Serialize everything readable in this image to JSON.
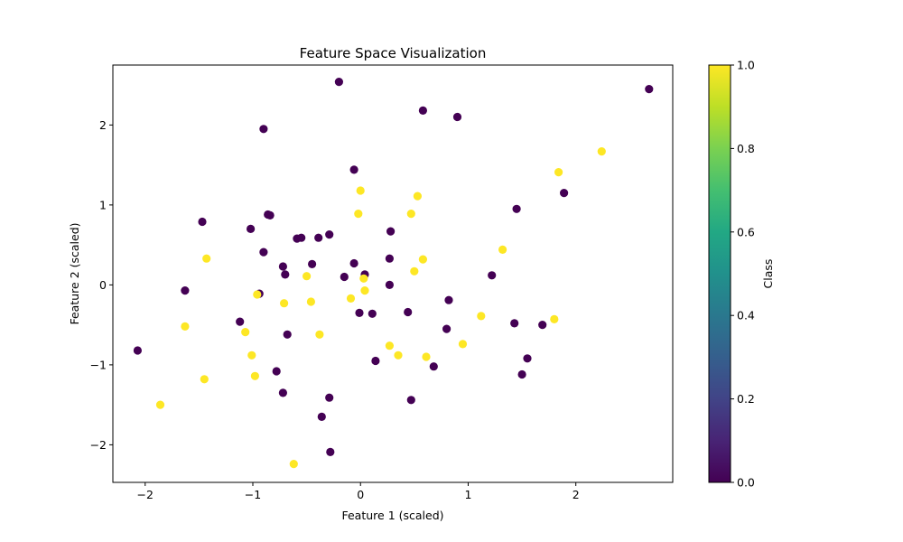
{
  "chart_data": {
    "type": "scatter",
    "title": "Feature Space Visualization",
    "xlabel": "Feature 1 (scaled)",
    "ylabel": "Feature 2 (scaled)",
    "xlim": [
      -2.3,
      2.9
    ],
    "ylim": [
      -2.47,
      2.75
    ],
    "x_ticks": [
      -2,
      -1,
      0,
      1,
      2
    ],
    "y_ticks": [
      -2,
      -1,
      0,
      1,
      2
    ],
    "grid": false,
    "colormap": "viridis",
    "colorbar": {
      "label": "Class",
      "range": [
        0.0,
        1.0
      ],
      "ticks": [
        "0.0",
        "0.2",
        "0.4",
        "0.6",
        "0.8",
        "1.0"
      ]
    },
    "colors": {
      "class_0": "#440154",
      "class_1": "#fde725"
    },
    "series": [
      {
        "class": 0,
        "points": [
          [
            -2.07,
            -0.82
          ],
          [
            -1.63,
            -0.07
          ],
          [
            -1.47,
            0.79
          ],
          [
            -1.12,
            -0.46
          ],
          [
            -1.02,
            0.7
          ],
          [
            -0.9,
            1.95
          ],
          [
            -0.9,
            0.41
          ],
          [
            -0.86,
            0.88
          ],
          [
            -0.84,
            0.87
          ],
          [
            -0.78,
            -1.08
          ],
          [
            -0.72,
            0.23
          ],
          [
            -0.7,
            0.13
          ],
          [
            -0.68,
            -0.62
          ],
          [
            -0.72,
            -1.35
          ],
          [
            -0.59,
            0.58
          ],
          [
            -0.55,
            0.59
          ],
          [
            -0.45,
            0.26
          ],
          [
            -0.39,
            0.59
          ],
          [
            -0.36,
            -1.65
          ],
          [
            -0.29,
            0.63
          ],
          [
            -0.29,
            -1.41
          ],
          [
            -0.28,
            -2.09
          ],
          [
            -0.2,
            2.54
          ],
          [
            -0.15,
            0.1
          ],
          [
            -0.06,
            1.44
          ],
          [
            -0.06,
            0.27
          ],
          [
            -0.01,
            -0.35
          ],
          [
            0.04,
            0.13
          ],
          [
            0.11,
            -0.36
          ],
          [
            0.14,
            -0.95
          ],
          [
            0.27,
            0.33
          ],
          [
            0.27,
            0.0
          ],
          [
            0.28,
            0.67
          ],
          [
            0.44,
            -0.34
          ],
          [
            0.47,
            -1.44
          ],
          [
            0.58,
            2.18
          ],
          [
            0.68,
            -1.02
          ],
          [
            0.8,
            -0.55
          ],
          [
            0.82,
            -0.19
          ],
          [
            0.9,
            2.1
          ],
          [
            1.22,
            0.12
          ],
          [
            1.43,
            -0.48
          ],
          [
            1.45,
            0.95
          ],
          [
            1.5,
            -1.12
          ],
          [
            1.55,
            -0.92
          ],
          [
            1.69,
            -0.5
          ],
          [
            1.89,
            1.15
          ],
          [
            2.68,
            2.45
          ],
          [
            -0.94,
            -0.11
          ]
        ]
      },
      {
        "class": 1,
        "points": [
          [
            -1.86,
            -1.5
          ],
          [
            -1.63,
            -0.52
          ],
          [
            -1.45,
            -1.18
          ],
          [
            -1.43,
            0.33
          ],
          [
            -1.07,
            -0.59
          ],
          [
            -1.01,
            -0.88
          ],
          [
            -0.98,
            -1.14
          ],
          [
            -0.96,
            -0.12
          ],
          [
            -0.71,
            -0.23
          ],
          [
            -0.62,
            -2.24
          ],
          [
            -0.5,
            0.11
          ],
          [
            -0.46,
            -0.21
          ],
          [
            -0.38,
            -0.62
          ],
          [
            -0.09,
            -0.17
          ],
          [
            -0.02,
            0.89
          ],
          [
            0.0,
            1.18
          ],
          [
            0.04,
            -0.07
          ],
          [
            0.03,
            0.08
          ],
          [
            0.27,
            -0.76
          ],
          [
            0.35,
            -0.88
          ],
          [
            0.47,
            0.89
          ],
          [
            0.5,
            0.17
          ],
          [
            0.53,
            1.11
          ],
          [
            0.58,
            0.32
          ],
          [
            0.61,
            -0.9
          ],
          [
            0.95,
            -0.74
          ],
          [
            1.12,
            -0.39
          ],
          [
            1.32,
            0.44
          ],
          [
            1.8,
            -0.43
          ],
          [
            1.84,
            1.41
          ],
          [
            2.24,
            1.67
          ]
        ]
      }
    ]
  }
}
